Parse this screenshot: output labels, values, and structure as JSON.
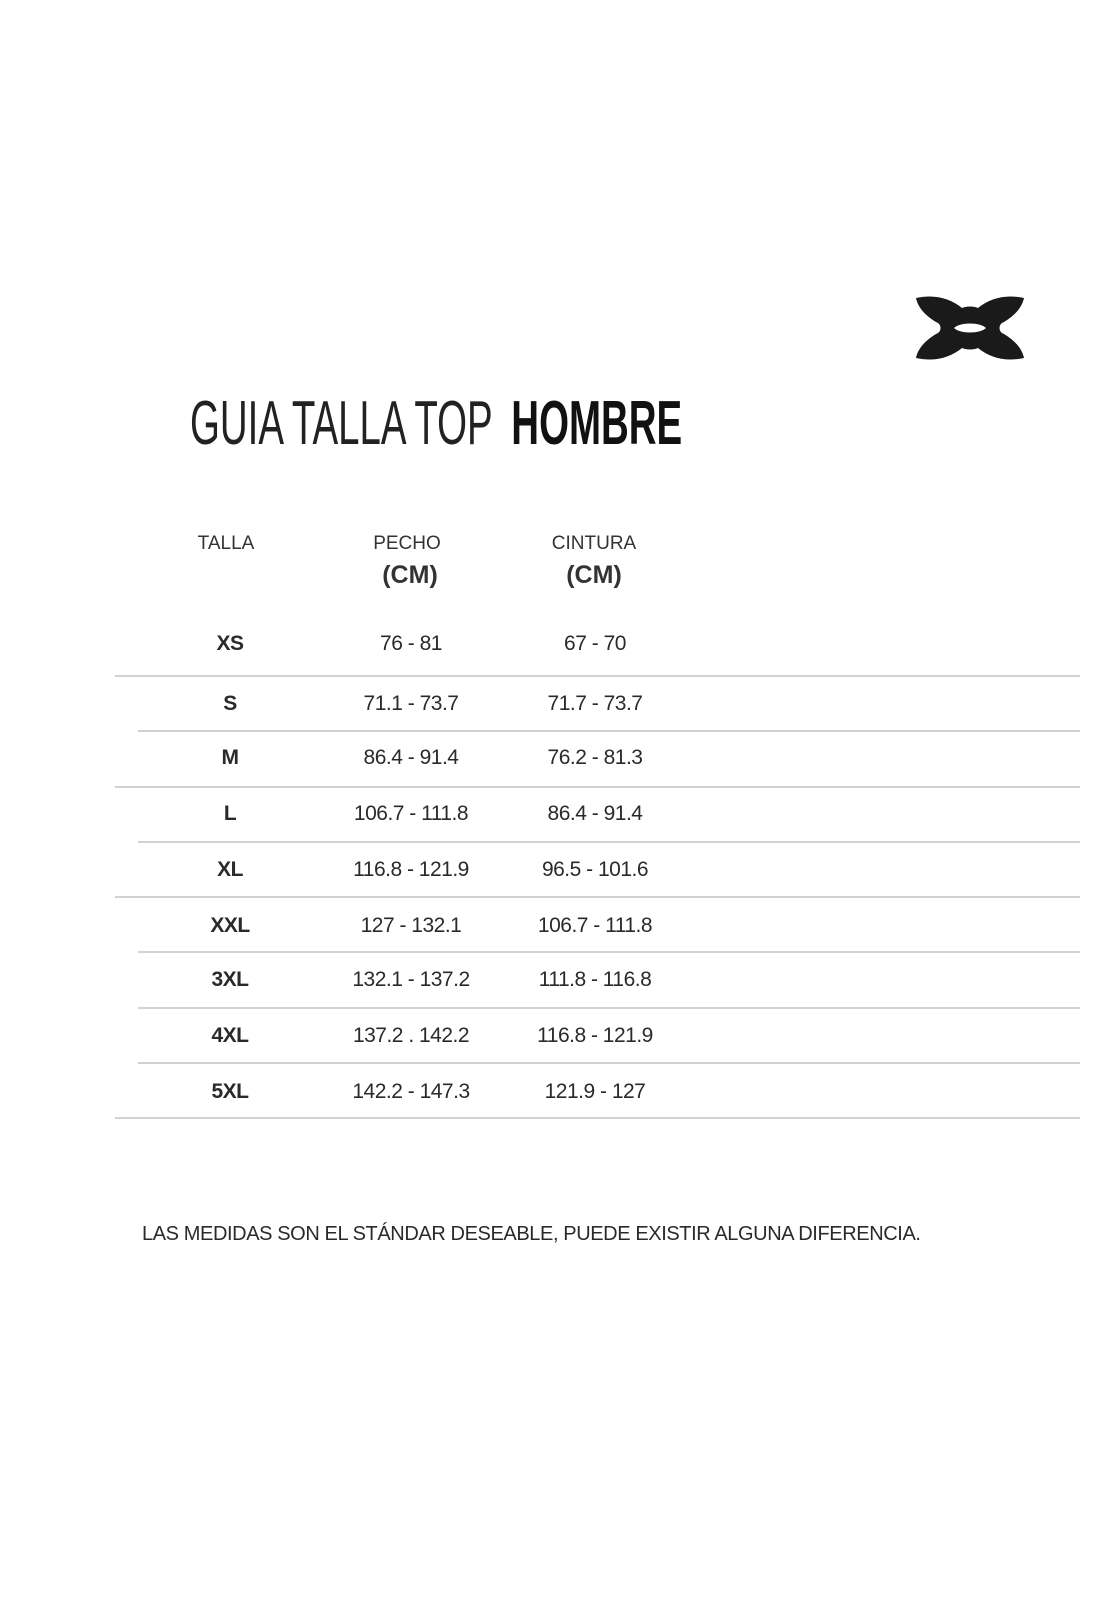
{
  "brand": {
    "logo": "Under Armour logo"
  },
  "title": {
    "light": "GUIA TALLA TOP",
    "bold": "HOMBRE"
  },
  "table": {
    "headers": [
      {
        "label": "TALLA",
        "unit": ""
      },
      {
        "label": "PECHO",
        "unit": "(CM)"
      },
      {
        "label": "CINTURA",
        "unit": "(CM)"
      }
    ],
    "rows": [
      [
        "XS",
        "76 - 81",
        "67 - 70"
      ],
      [
        "S",
        "71.1 - 73.7",
        "71.7 - 73.7"
      ],
      [
        "M",
        "86.4 - 91.4",
        "76.2 - 81.3"
      ],
      [
        "L",
        "106.7 - 111.8",
        "86.4 - 91.4"
      ],
      [
        "XL",
        "116.8 - 121.9",
        "96.5 - 101.6"
      ],
      [
        "XXL",
        "127 - 132.1",
        "106.7 - 111.8"
      ],
      [
        "3XL",
        "132.1 - 137.2",
        "111.8 - 116.8"
      ],
      [
        "4XL",
        "137.2 . 142.2",
        "116.8 - 121.9"
      ],
      [
        "5XL",
        "142.2 - 147.3",
        "121.9 - 127"
      ]
    ]
  },
  "note": "LAS MEDIDAS SON EL STÁNDAR DESEABLE, PUEDE EXISTIR ALGUNA DIFERENCIA."
}
